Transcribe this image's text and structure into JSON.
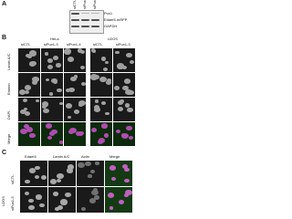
{
  "panel_a": {
    "label": "A",
    "lanes": [
      "siCTL",
      "siPux1-3",
      "siPux1-4"
    ],
    "bands": [
      "Pux1",
      "Edaef4-mRFP",
      "GAPDH"
    ]
  },
  "panel_b": {
    "label": "B",
    "cell_lines": [
      "HeLa",
      "U2OS"
    ],
    "columns": [
      "siCTL",
      "siPux1-3",
      "siPux1-4",
      "siCTL",
      "siPux1-3"
    ],
    "rows": [
      "Lamin A/C",
      "Emerin",
      "DAPI",
      "Merge"
    ]
  },
  "panel_c": {
    "label": "C",
    "columns": [
      "Edaef4",
      "Lamin A/C",
      "Actin",
      "Merge"
    ],
    "rows": [
      "siCTL",
      "siPux1-3"
    ],
    "cell_line": "U2OS"
  }
}
